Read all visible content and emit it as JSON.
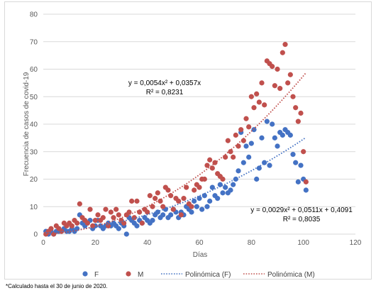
{
  "chart_data": {
    "type": "scatter",
    "xlabel": "Días",
    "ylabel": "Frecuencia de casos de covid-19",
    "xlim": [
      0,
      120
    ],
    "ylim": [
      0,
      80
    ],
    "xticks": [
      "0",
      "20",
      "40",
      "60",
      "80",
      "100",
      "120"
    ],
    "yticks": [
      "0",
      "10",
      "20",
      "30",
      "40",
      "50",
      "60",
      "70",
      "80"
    ],
    "grid": "horizontal",
    "legend_position": "bottom",
    "series": [
      {
        "name": "F",
        "color": "#4472c4",
        "points": [
          [
            1,
            1
          ],
          [
            2,
            0
          ],
          [
            3,
            1
          ],
          [
            4,
            0
          ],
          [
            5,
            1
          ],
          [
            6,
            1
          ],
          [
            7,
            1
          ],
          [
            8,
            2
          ],
          [
            9,
            1
          ],
          [
            10,
            1
          ],
          [
            11,
            2
          ],
          [
            12,
            1
          ],
          [
            13,
            2
          ],
          [
            14,
            7
          ],
          [
            15,
            4
          ],
          [
            16,
            3
          ],
          [
            17,
            4
          ],
          [
            18,
            5
          ],
          [
            19,
            2
          ],
          [
            20,
            3
          ],
          [
            21,
            5
          ],
          [
            22,
            3
          ],
          [
            23,
            2
          ],
          [
            24,
            3
          ],
          [
            25,
            4
          ],
          [
            26,
            3
          ],
          [
            27,
            4
          ],
          [
            28,
            3
          ],
          [
            29,
            2
          ],
          [
            30,
            4
          ],
          [
            31,
            3
          ],
          [
            32,
            0
          ],
          [
            33,
            6
          ],
          [
            34,
            5
          ],
          [
            35,
            4
          ],
          [
            36,
            3
          ],
          [
            37,
            5
          ],
          [
            38,
            4
          ],
          [
            39,
            6
          ],
          [
            40,
            5
          ],
          [
            41,
            4
          ],
          [
            42,
            5
          ],
          [
            43,
            7
          ],
          [
            44,
            8
          ],
          [
            45,
            6
          ],
          [
            46,
            7
          ],
          [
            47,
            9
          ],
          [
            48,
            6
          ],
          [
            49,
            7
          ],
          [
            50,
            9
          ],
          [
            51,
            8
          ],
          [
            52,
            6
          ],
          [
            53,
            8
          ],
          [
            54,
            7
          ],
          [
            55,
            10
          ],
          [
            56,
            9
          ],
          [
            57,
            8
          ],
          [
            58,
            12
          ],
          [
            59,
            10
          ],
          [
            60,
            13
          ],
          [
            61,
            9
          ],
          [
            62,
            14
          ],
          [
            63,
            10
          ],
          [
            64,
            12
          ],
          [
            65,
            17
          ],
          [
            66,
            14
          ],
          [
            67,
            13
          ],
          [
            68,
            18
          ],
          [
            69,
            15
          ],
          [
            70,
            17
          ],
          [
            71,
            15
          ],
          [
            72,
            16
          ],
          [
            73,
            18
          ],
          [
            74,
            20
          ],
          [
            75,
            23
          ],
          [
            76,
            37
          ],
          [
            77,
            26
          ],
          [
            78,
            32
          ],
          [
            79,
            28
          ],
          [
            80,
            33
          ],
          [
            81,
            38
          ],
          [
            82,
            20
          ],
          [
            83,
            24
          ],
          [
            84,
            35
          ],
          [
            85,
            26
          ],
          [
            86,
            41
          ],
          [
            87,
            25
          ],
          [
            88,
            40
          ],
          [
            89,
            35
          ],
          [
            90,
            32
          ],
          [
            91,
            37
          ],
          [
            92,
            36
          ],
          [
            93,
            38
          ],
          [
            94,
            37
          ],
          [
            95,
            36
          ],
          [
            96,
            29
          ],
          [
            97,
            26
          ],
          [
            98,
            19
          ],
          [
            99,
            25
          ],
          [
            100,
            20
          ],
          [
            101,
            16
          ]
        ],
        "trendline": {
          "equation": "y = 0,0029x² + 0,0511x + 0,4091",
          "r2": "R² = 0,8035",
          "a": 0.0029,
          "b": 0.0511,
          "c": 0.4091
        }
      },
      {
        "name": "M",
        "color": "#c0504d",
        "points": [
          [
            1,
            0
          ],
          [
            2,
            1
          ],
          [
            3,
            2
          ],
          [
            4,
            0
          ],
          [
            5,
            3
          ],
          [
            6,
            2
          ],
          [
            7,
            1
          ],
          [
            8,
            4
          ],
          [
            9,
            3
          ],
          [
            10,
            4
          ],
          [
            11,
            3
          ],
          [
            12,
            5
          ],
          [
            13,
            4
          ],
          [
            14,
            11
          ],
          [
            15,
            6
          ],
          [
            16,
            5
          ],
          [
            17,
            4
          ],
          [
            18,
            9
          ],
          [
            19,
            3
          ],
          [
            20,
            5
          ],
          [
            21,
            7
          ],
          [
            22,
            5
          ],
          [
            23,
            6
          ],
          [
            24,
            9
          ],
          [
            25,
            3
          ],
          [
            26,
            8
          ],
          [
            27,
            6
          ],
          [
            28,
            9
          ],
          [
            29,
            7
          ],
          [
            30,
            5
          ],
          [
            31,
            4
          ],
          [
            32,
            7
          ],
          [
            33,
            8
          ],
          [
            34,
            12
          ],
          [
            35,
            6
          ],
          [
            36,
            12
          ],
          [
            37,
            8
          ],
          [
            38,
            4
          ],
          [
            39,
            9
          ],
          [
            40,
            8
          ],
          [
            41,
            14
          ],
          [
            42,
            10
          ],
          [
            43,
            13
          ],
          [
            44,
            15
          ],
          [
            45,
            12
          ],
          [
            46,
            10
          ],
          [
            47,
            17
          ],
          [
            48,
            16
          ],
          [
            49,
            14
          ],
          [
            50,
            9
          ],
          [
            51,
            13
          ],
          [
            52,
            12
          ],
          [
            53,
            7
          ],
          [
            54,
            13
          ],
          [
            55,
            17
          ],
          [
            56,
            11
          ],
          [
            57,
            10
          ],
          [
            58,
            16
          ],
          [
            59,
            18
          ],
          [
            60,
            17
          ],
          [
            61,
            20
          ],
          [
            62,
            20
          ],
          [
            63,
            25
          ],
          [
            64,
            27
          ],
          [
            65,
            24
          ],
          [
            66,
            26
          ],
          [
            67,
            22
          ],
          [
            68,
            21
          ],
          [
            69,
            20
          ],
          [
            70,
            28
          ],
          [
            71,
            34
          ],
          [
            72,
            30
          ],
          [
            73,
            28
          ],
          [
            74,
            36
          ],
          [
            75,
            32
          ],
          [
            76,
            38
          ],
          [
            77,
            34
          ],
          [
            78,
            42
          ],
          [
            79,
            39
          ],
          [
            80,
            50
          ],
          [
            81,
            46
          ],
          [
            82,
            51
          ],
          [
            83,
            48
          ],
          [
            84,
            55
          ],
          [
            85,
            47
          ],
          [
            86,
            63
          ],
          [
            87,
            62
          ],
          [
            88,
            61
          ],
          [
            89,
            54
          ],
          [
            90,
            60
          ],
          [
            91,
            53
          ],
          [
            92,
            66
          ],
          [
            93,
            69
          ],
          [
            94,
            55
          ],
          [
            95,
            58
          ],
          [
            96,
            50
          ],
          [
            97,
            46
          ],
          [
            98,
            41
          ],
          [
            99,
            44
          ],
          [
            100,
            30
          ],
          [
            101,
            19
          ]
        ],
        "trendline": {
          "equation": "y = 0,0054x² + 0,0357x",
          "r2": "R² = 0,8231",
          "a": 0.0054,
          "b": 0.0357,
          "c": 0
        }
      }
    ],
    "legend": [
      "F",
      "M",
      "Polinómica (F)",
      "Polinómica (M)"
    ]
  },
  "footnote": "*Calculado hasta el 30 de junio de 2020."
}
